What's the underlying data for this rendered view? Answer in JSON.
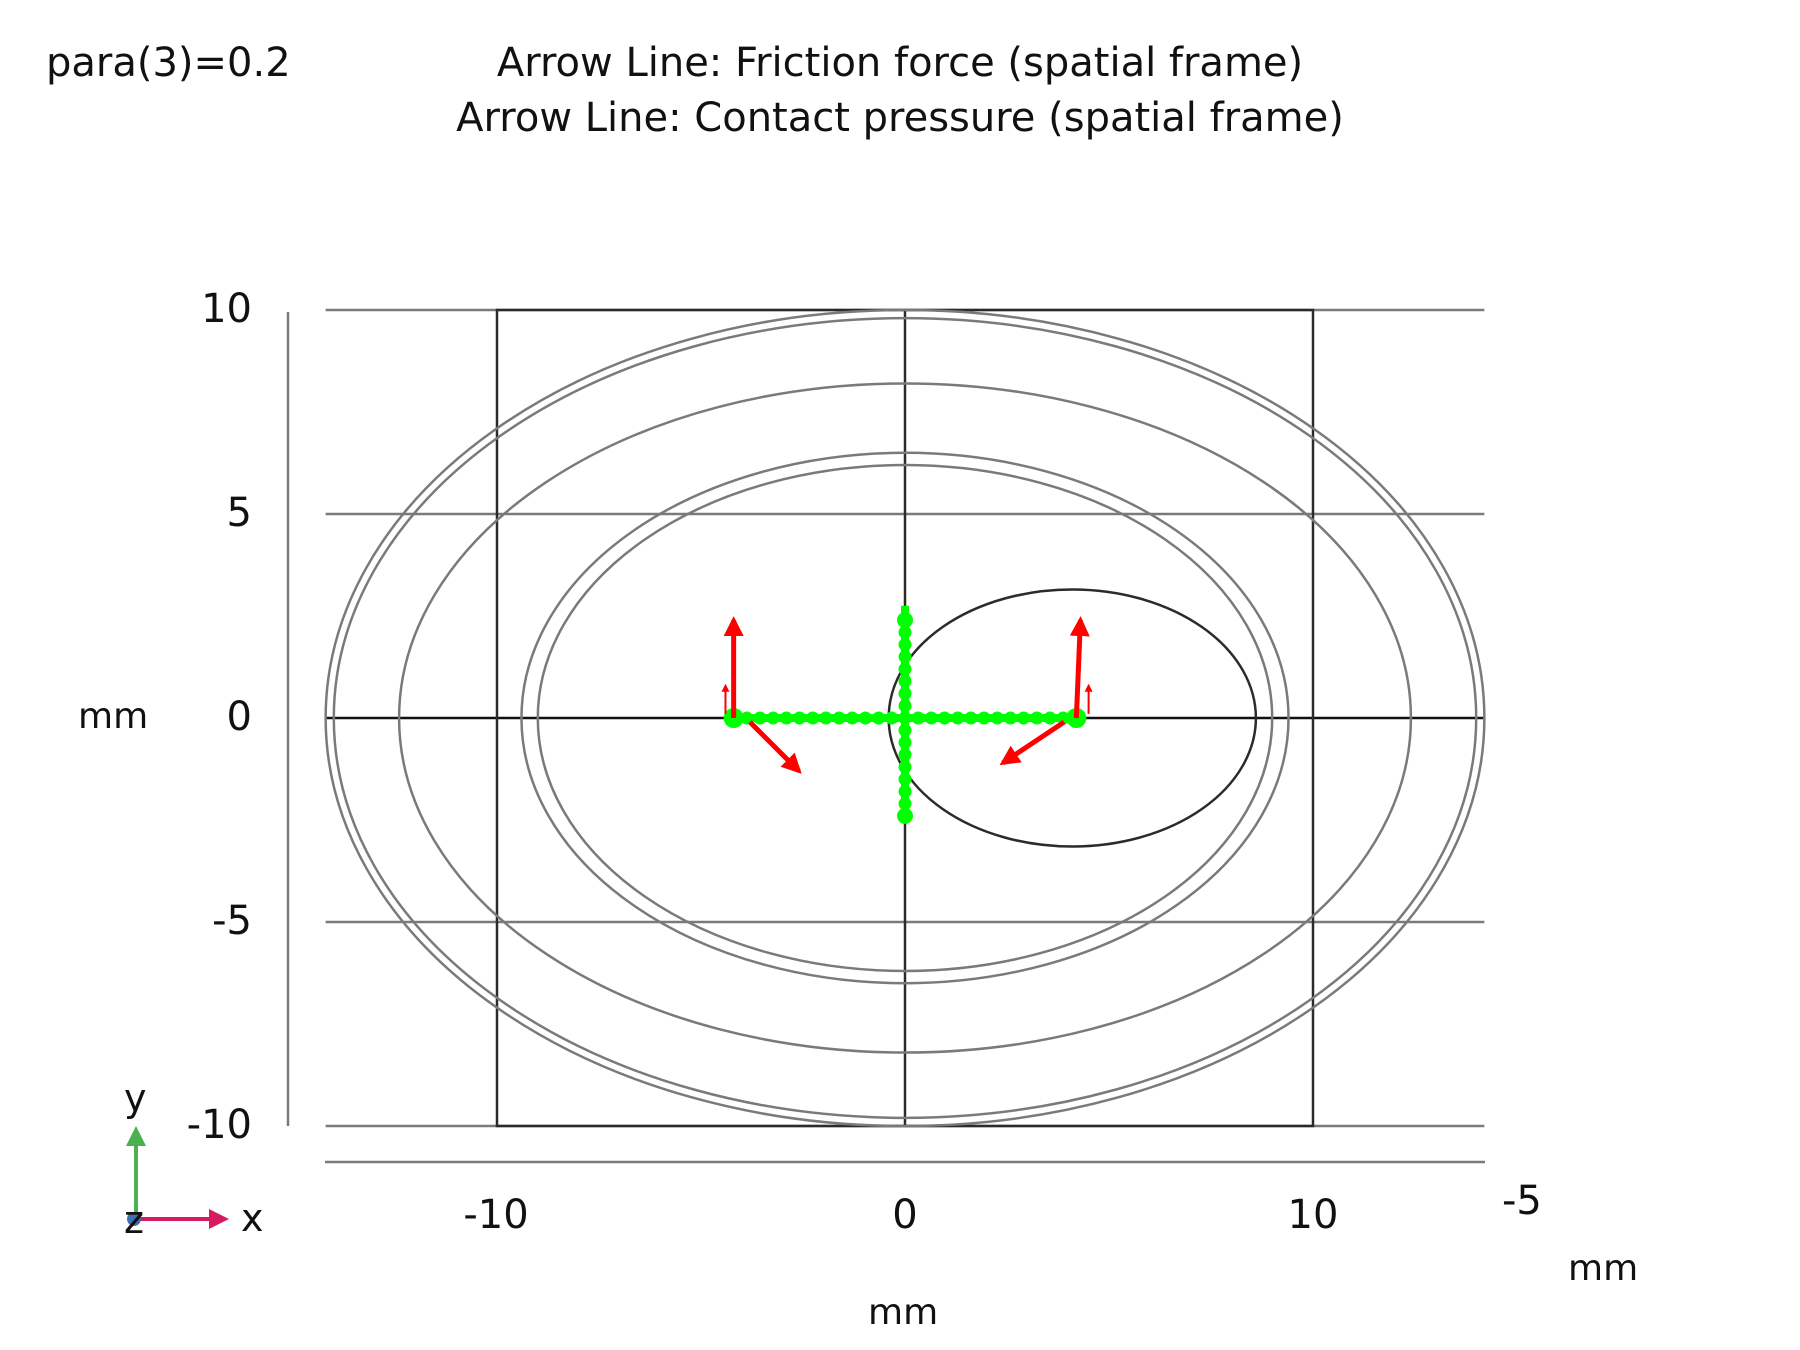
{
  "header": {
    "parameter_label": "para(3)=0.2",
    "plot_titles": [
      "Arrow Line: Friction force (spatial frame)",
      "Arrow Line: Contact pressure (spatial frame)"
    ]
  },
  "axes": {
    "y_ticks": [
      "10",
      "5",
      "0",
      "-5",
      "-10"
    ],
    "x_ticks": [
      "-10",
      "0",
      "10"
    ],
    "z_tick": "-5",
    "y_unit": "mm",
    "x_unit": "mm",
    "z_unit": "mm",
    "xlim": [
      -14.2,
      14.2
    ],
    "ylim": [
      -10,
      10
    ]
  },
  "triad": {
    "y": "y",
    "x": "x",
    "z": "z"
  },
  "colors": {
    "grid": "#7a7a7a",
    "geometry": "#2b2b2b",
    "contact_points": "#00ff00",
    "arrows": "#ff0000",
    "triad_y": "#4caf50",
    "triad_x": "#d81b60",
    "triad_z": "#3f6fb5"
  },
  "chart_data": {
    "type": "scatter",
    "geometry": {
      "square": {
        "xmin": -10,
        "xmax": 10,
        "ymin": -10,
        "ymax": 10
      },
      "ellipses": [
        {
          "cx": 0,
          "cy": 0,
          "rx": 14.2,
          "ry": 10.0
        },
        {
          "cx": 0,
          "cy": 0,
          "rx": 14.0,
          "ry": 9.8
        },
        {
          "cx": 0,
          "cy": 0,
          "rx": 12.4,
          "ry": 8.2
        },
        {
          "cx": 0,
          "cy": 0,
          "rx": 9.4,
          "ry": 6.5
        },
        {
          "cx": 0,
          "cy": 0,
          "rx": 9.0,
          "ry": 6.2
        },
        {
          "cx": 4.1,
          "cy": 0,
          "rx": 4.5,
          "ry": 3.15,
          "dark": true
        }
      ]
    },
    "contact_points": {
      "horizontal": {
        "x_from": -4.2,
        "x_to": 4.2,
        "y": 0,
        "count": 27
      },
      "vertical": {
        "y_from": -2.4,
        "y_to": 2.4,
        "x": 0,
        "count": 17
      }
    },
    "arrows": [
      {
        "x": -4.2,
        "y": 0,
        "dx": 0.0,
        "dy": 2.4
      },
      {
        "x": 4.2,
        "y": 0,
        "dx": 0.1,
        "dy": 2.4
      },
      {
        "x": -3.8,
        "y": -0.1,
        "dx": 1.2,
        "dy": -1.2
      },
      {
        "x": 3.9,
        "y": -0.1,
        "dx": -1.5,
        "dy": -1.0
      },
      {
        "x": -4.4,
        "y": 0.1,
        "dx": 0.0,
        "dy": 0.7
      },
      {
        "x": 4.5,
        "y": 0.1,
        "dx": 0.0,
        "dy": 0.7
      }
    ]
  }
}
